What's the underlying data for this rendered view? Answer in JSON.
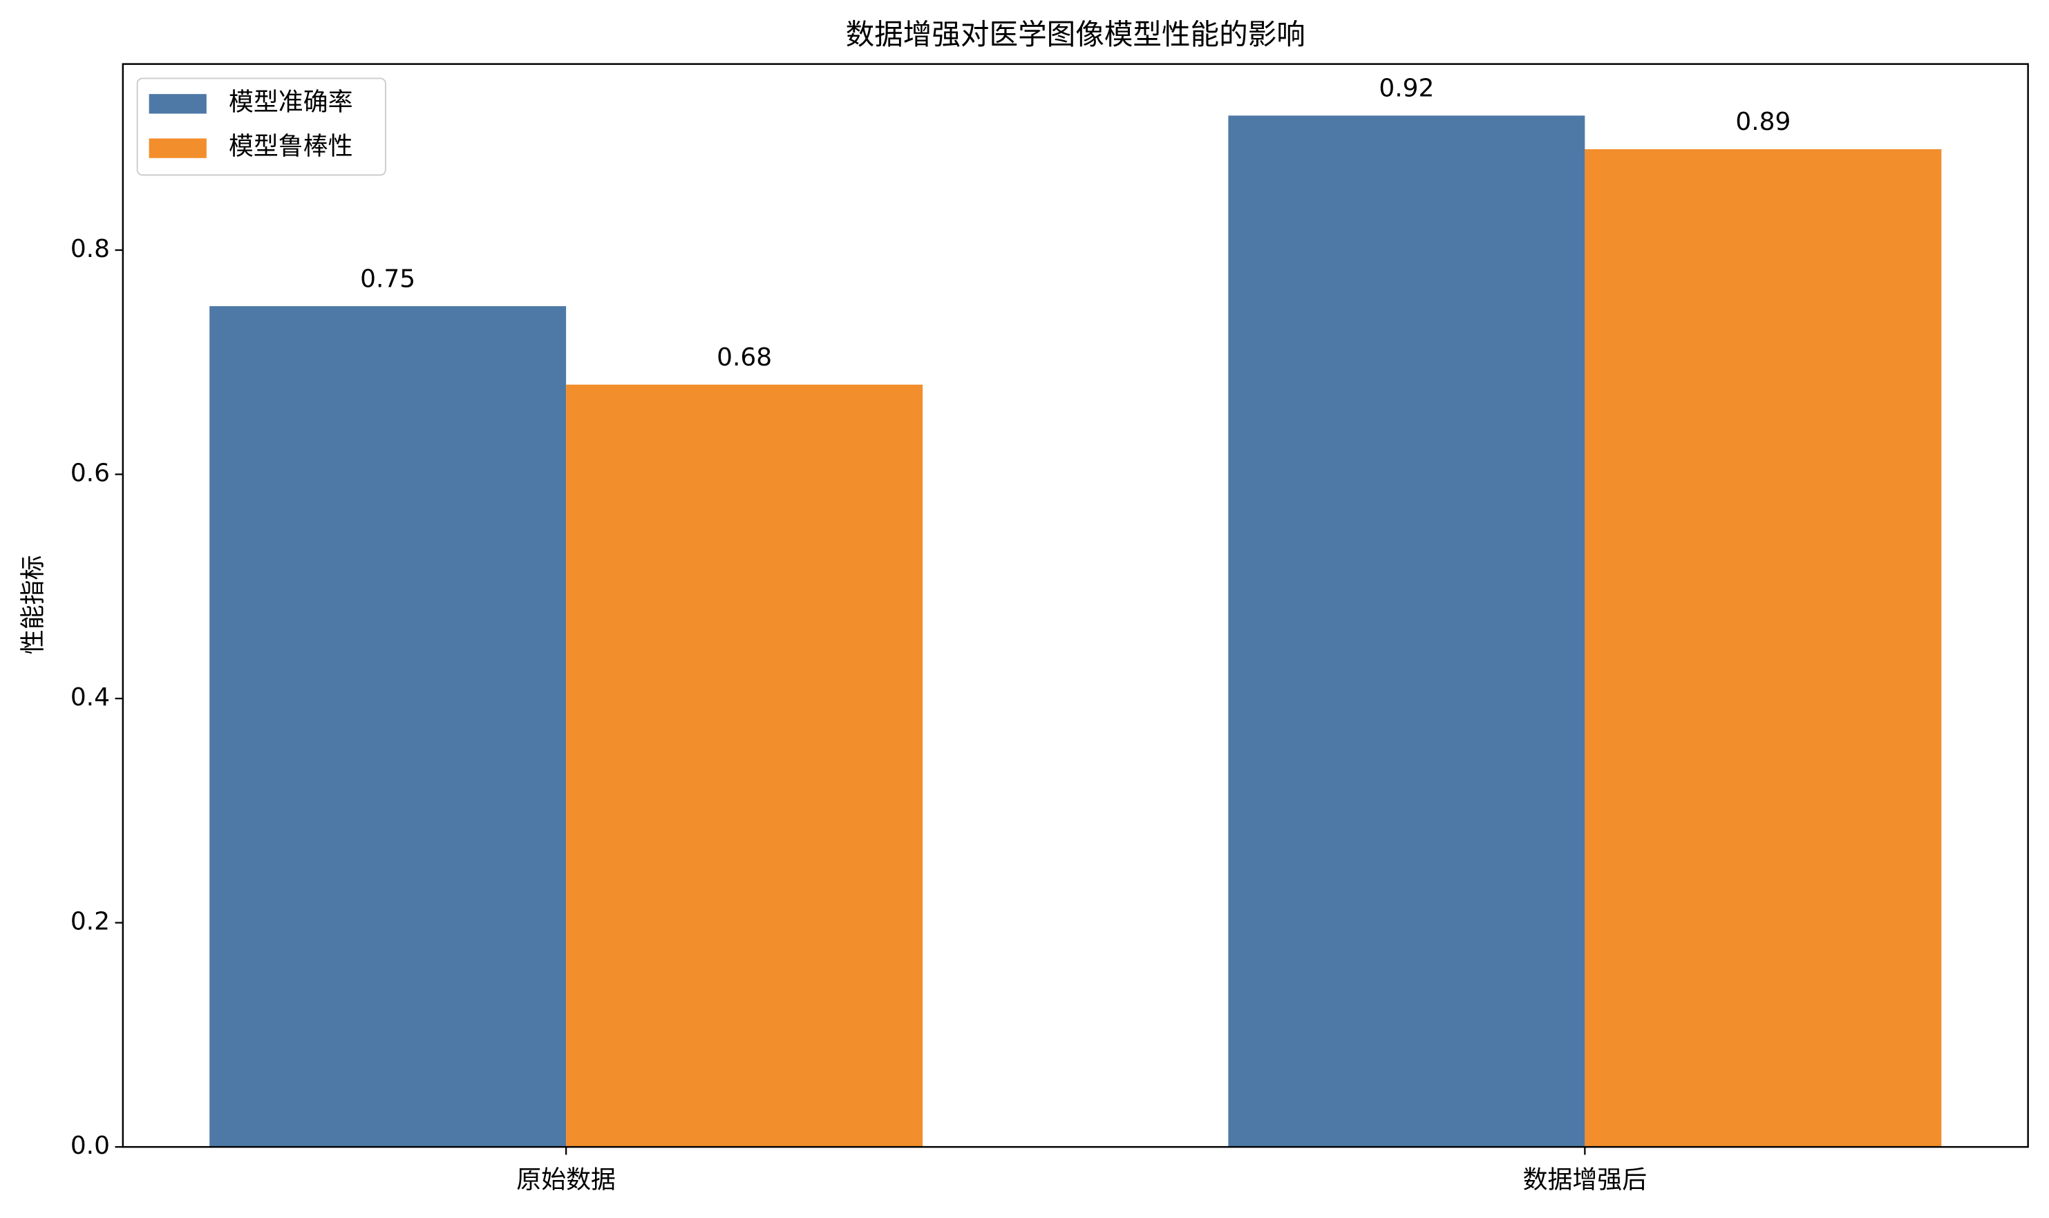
{
  "chart_data": {
    "type": "bar",
    "title": "数据增强对医学图像模型性能的影响",
    "y_label": "性能指标",
    "categories": [
      "原始数据",
      "数据增强后"
    ],
    "series": [
      {
        "name": "模型准确率",
        "color": "#4e79a7",
        "values": [
          0.75,
          0.92
        ]
      },
      {
        "name": "模型鲁棒性",
        "color": "#f28e2b",
        "values": [
          0.68,
          0.89
        ]
      }
    ],
    "ylim": [
      0,
      0.966
    ],
    "yticks": [
      {
        "value": 0,
        "label": "0.0"
      },
      0.2,
      0.4,
      0.6,
      0.8
    ],
    "grid": false,
    "legend": "upper-left"
  }
}
